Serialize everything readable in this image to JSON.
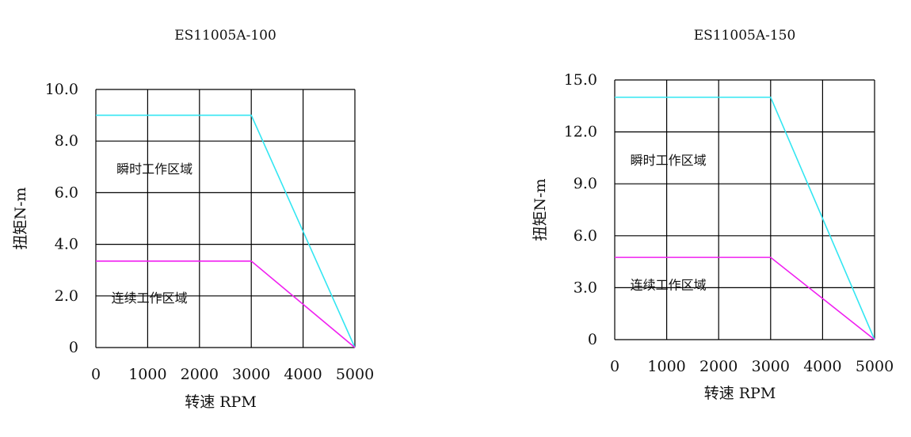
{
  "chart_data": [
    {
      "type": "line",
      "title": "ES11005A-100",
      "xlabel": "转速 RPM",
      "ylabel": "扭矩N-m",
      "xlim": [
        0,
        5000
      ],
      "ylim": [
        0,
        10
      ],
      "x_ticks": [
        0,
        1000,
        2000,
        3000,
        4000,
        5000
      ],
      "x_tick_labels": [
        "0",
        "1000",
        "2000",
        "3000",
        "4000",
        "5000"
      ],
      "y_ticks": [
        0,
        2,
        4,
        6,
        8,
        10
      ],
      "y_tick_labels": [
        "0",
        "2.0",
        "4.0",
        "6.0",
        "8.0",
        "10.0"
      ],
      "grid": true,
      "series": [
        {
          "color": "#33e6f2",
          "x": [
            0,
            3000,
            5000
          ],
          "y": [
            9.0,
            9.0,
            0
          ]
        },
        {
          "color": "#f020f0",
          "x": [
            0,
            3000,
            5000
          ],
          "y": [
            3.35,
            3.35,
            0
          ]
        }
      ],
      "annotations": [
        {
          "text": "瞬时工作区域",
          "x": 400,
          "y": 6.75
        },
        {
          "text": "连续工作区域",
          "x": 300,
          "y": 1.75
        }
      ]
    },
    {
      "type": "line",
      "title": "ES11005A-150",
      "xlabel": "转速 RPM",
      "ylabel": "扭矩N-m",
      "xlim": [
        0,
        5000
      ],
      "ylim": [
        0,
        15
      ],
      "x_ticks": [
        0,
        1000,
        2000,
        3000,
        4000,
        5000
      ],
      "x_tick_labels": [
        "0",
        "1000",
        "2000",
        "3000",
        "4000",
        "5000"
      ],
      "y_ticks": [
        0,
        3,
        6,
        9,
        12,
        15
      ],
      "y_tick_labels": [
        "0",
        "3.0",
        "6.0",
        "9.0",
        "12.0",
        "15.0"
      ],
      "grid": true,
      "series": [
        {
          "color": "#33e6f2",
          "x": [
            0,
            3000,
            5000
          ],
          "y": [
            14.0,
            14.0,
            0
          ]
        },
        {
          "color": "#f020f0",
          "x": [
            0,
            3000,
            5000
          ],
          "y": [
            4.75,
            4.75,
            0
          ]
        }
      ],
      "annotations": [
        {
          "text": "瞬时工作区域",
          "x": 300,
          "y": 10.1
        },
        {
          "text": "连续工作区域",
          "x": 300,
          "y": 2.9
        }
      ]
    }
  ]
}
